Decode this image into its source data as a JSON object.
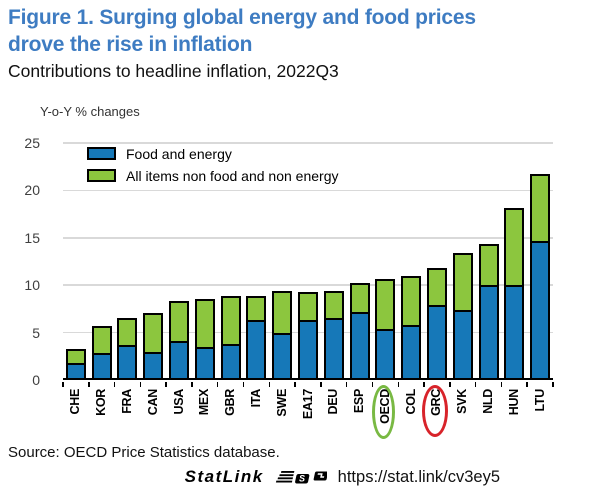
{
  "title_line1": "Figure 1. Surging global energy and food prices",
  "title_line2": "drove the rise in inflation",
  "subtitle": "Contributions to headline inflation, 2022Q3",
  "source": "Source: OECD Price Statistics database.",
  "statlink": {
    "label": "StatLink",
    "icon": "statlink-icon",
    "url": "https://stat.link/cv3ey5"
  },
  "colors": {
    "title": "#3e7cc2",
    "food_energy": "#1678b8",
    "non_food_energy": "#8cc63e",
    "bar_border": "#000000",
    "grid": "#d9d9d9",
    "axis": "#000000",
    "oecd_circle": "#79b943",
    "grc_circle": "#d8232a"
  },
  "chart_data": {
    "type": "bar",
    "stacked": true,
    "title": "Contributions to headline inflation, 2022Q3",
    "ylabel": "Y-o-Y % changes",
    "xlabel": "",
    "ylim": [
      0,
      25
    ],
    "yticks": [
      0,
      5,
      10,
      15,
      20,
      25
    ],
    "grid": true,
    "legend_position": "top-left-inside",
    "categories": [
      "CHE",
      "KOR",
      "FRA",
      "CAN",
      "USA",
      "MEX",
      "GBR",
      "ITA",
      "SWE",
      "EA17",
      "DEU",
      "ESP",
      "OECD",
      "COL",
      "GRC",
      "SVK",
      "NLD",
      "HUN",
      "LTU"
    ],
    "series": [
      {
        "name": "Food and energy",
        "color_key": "food_energy",
        "values": [
          1.4,
          2.4,
          3.3,
          2.5,
          3.7,
          3.1,
          3.4,
          5.9,
          4.5,
          5.9,
          6.1,
          6.7,
          5.0,
          5.4,
          7.5,
          7.0,
          9.6,
          9.6,
          14.2
        ]
      },
      {
        "name": "All items non food and non energy",
        "color_key": "non_food_energy",
        "values": [
          1.7,
          3.1,
          3.0,
          4.4,
          4.4,
          5.2,
          5.2,
          2.8,
          4.7,
          3.2,
          3.1,
          3.3,
          5.4,
          5.4,
          4.1,
          6.2,
          4.5,
          8.3,
          7.3
        ]
      }
    ],
    "totals": [
      3.1,
      5.5,
      6.3,
      6.9,
      8.1,
      8.3,
      8.6,
      8.7,
      9.2,
      9.1,
      9.2,
      10.0,
      10.4,
      10.8,
      11.6,
      13.2,
      14.1,
      17.9,
      21.5
    ],
    "annotations": [
      {
        "type": "ellipse",
        "target": "OECD",
        "color_key": "oecd_circle"
      },
      {
        "type": "ellipse",
        "target": "GRC",
        "color_key": "grc_circle"
      }
    ]
  }
}
